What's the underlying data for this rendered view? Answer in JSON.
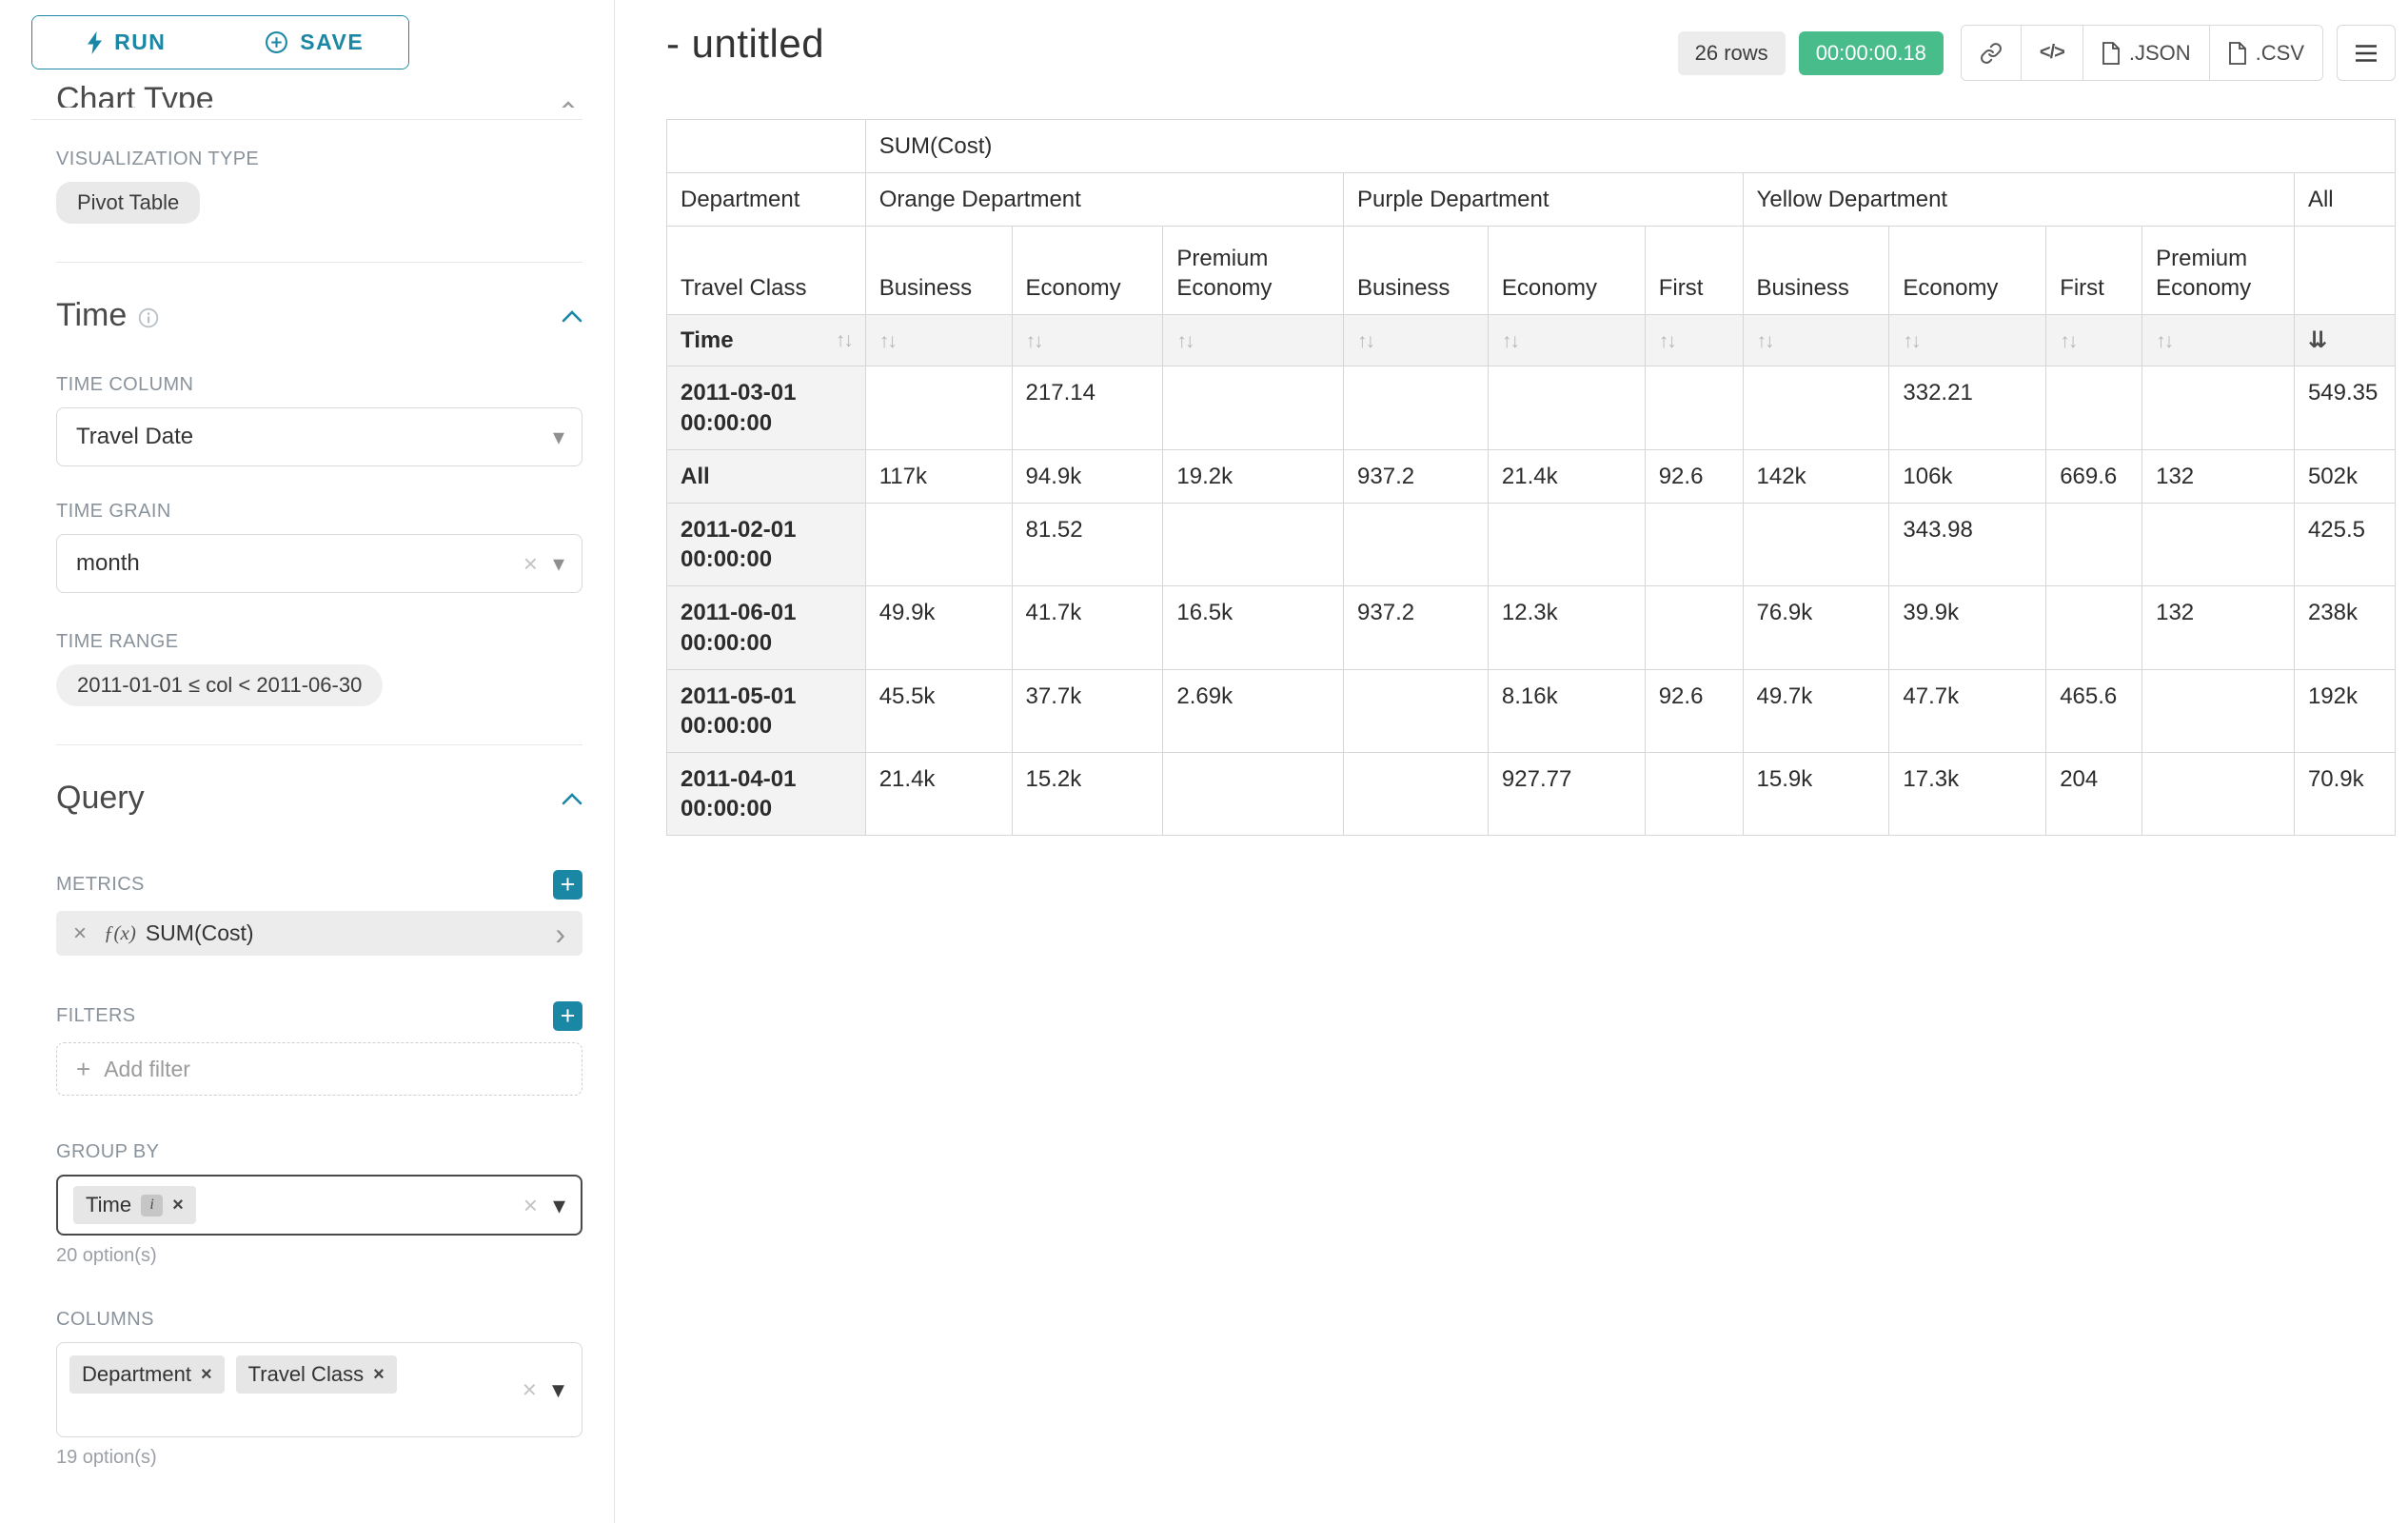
{
  "colors": {
    "accent": "#1a87a5",
    "timer_green": "#48bd8b"
  },
  "icons": {
    "caret_down": "▾",
    "clear": "×",
    "plus": "+",
    "chevron_right": "›",
    "sort": "↑↓",
    "sort_active": "⇊",
    "info": "i"
  },
  "sidebar": {
    "run_label": "RUN",
    "save_label": "SAVE",
    "chart_type_header": "Chart Type",
    "visualization": {
      "label": "VISUALIZATION TYPE",
      "value": "Pivot Table"
    },
    "time": {
      "header": "Time",
      "column_label": "TIME COLUMN",
      "column_value": "Travel Date",
      "grain_label": "TIME GRAIN",
      "grain_value": "month",
      "range_label": "TIME RANGE",
      "range_value": "2011-01-01 ≤ col < 2011-06-30"
    },
    "query": {
      "header": "Query",
      "metrics_label": "METRICS",
      "metric_fx": "ƒ(x)",
      "metric_value": "SUM(Cost)",
      "filters_label": "FILTERS",
      "add_filter": "Add filter",
      "group_by_label": "GROUP BY",
      "group_by_chips": [
        "Time"
      ],
      "group_by_hint": "20 option(s)",
      "columns_label": "COLUMNS",
      "columns_chips": [
        "Department",
        "Travel Class"
      ],
      "columns_hint": "19 option(s)"
    }
  },
  "header": {
    "title": "- untitled",
    "rows_badge": "26 rows",
    "timer": "00:00:00.18",
    "code_icon_label": "</>",
    "json_label": ".JSON",
    "csv_label": ".CSV"
  },
  "table": {
    "metric": "SUM(Cost)",
    "department_label": "Department",
    "travel_class_label": "Travel Class",
    "time_label": "Time",
    "column_groups": [
      {
        "group": "Orange Department",
        "classes": [
          "Business",
          "Economy",
          "Premium Economy"
        ]
      },
      {
        "group": "Purple Department",
        "classes": [
          "Business",
          "Economy",
          "First"
        ]
      },
      {
        "group": "Yellow Department",
        "classes": [
          "Business",
          "Economy",
          "First",
          "Premium Economy"
        ]
      },
      {
        "group": "All",
        "classes": [
          ""
        ]
      }
    ],
    "rows": [
      {
        "label": "2011-03-01 00:00:00",
        "values": [
          "",
          "217.14",
          "",
          "",
          "",
          "",
          "",
          "332.21",
          "",
          "",
          "549.35"
        ]
      },
      {
        "label": "All",
        "values": [
          "117k",
          "94.9k",
          "19.2k",
          "937.2",
          "21.4k",
          "92.6",
          "142k",
          "106k",
          "669.6",
          "132",
          "502k"
        ]
      },
      {
        "label": "2011-02-01 00:00:00",
        "values": [
          "",
          "81.52",
          "",
          "",
          "",
          "",
          "",
          "343.98",
          "",
          "",
          "425.5"
        ]
      },
      {
        "label": "2011-06-01 00:00:00",
        "values": [
          "49.9k",
          "41.7k",
          "16.5k",
          "937.2",
          "12.3k",
          "",
          "76.9k",
          "39.9k",
          "",
          "132",
          "238k"
        ]
      },
      {
        "label": "2011-05-01 00:00:00",
        "values": [
          "45.5k",
          "37.7k",
          "2.69k",
          "",
          "8.16k",
          "92.6",
          "49.7k",
          "47.7k",
          "465.6",
          "",
          "192k"
        ]
      },
      {
        "label": "2011-04-01 00:00:00",
        "values": [
          "21.4k",
          "15.2k",
          "",
          "",
          "927.77",
          "",
          "15.9k",
          "17.3k",
          "204",
          "",
          "70.9k"
        ]
      }
    ]
  }
}
